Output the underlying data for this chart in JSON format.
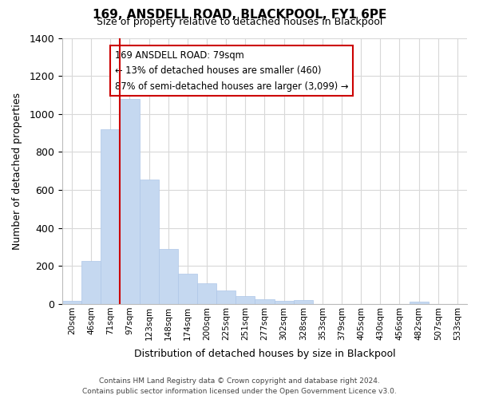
{
  "title": "169, ANSDELL ROAD, BLACKPOOL, FY1 6PE",
  "subtitle": "Size of property relative to detached houses in Blackpool",
  "xlabel": "Distribution of detached houses by size in Blackpool",
  "ylabel": "Number of detached properties",
  "bar_labels": [
    "20sqm",
    "46sqm",
    "71sqm",
    "97sqm",
    "123sqm",
    "148sqm",
    "174sqm",
    "200sqm",
    "225sqm",
    "251sqm",
    "277sqm",
    "302sqm",
    "328sqm",
    "353sqm",
    "379sqm",
    "405sqm",
    "430sqm",
    "456sqm",
    "482sqm",
    "507sqm",
    "533sqm"
  ],
  "bar_values": [
    15,
    228,
    920,
    1080,
    655,
    290,
    158,
    107,
    72,
    40,
    25,
    18,
    20,
    0,
    0,
    0,
    0,
    0,
    12,
    0,
    0
  ],
  "bar_color": "#c5d8f0",
  "bar_edge_color": "#aec6e8",
  "vline_x_offset": 2.5,
  "vline_color": "#cc0000",
  "annotation_title": "169 ANSDELL ROAD: 79sqm",
  "annotation_line1": "← 13% of detached houses are smaller (460)",
  "annotation_line2": "87% of semi-detached houses are larger (3,099) →",
  "annotation_box_color": "#ffffff",
  "annotation_box_edge": "#cc0000",
  "ylim": [
    0,
    1400
  ],
  "yticks": [
    0,
    200,
    400,
    600,
    800,
    1000,
    1200,
    1400
  ],
  "footnote": "Contains HM Land Registry data © Crown copyright and database right 2024.\nContains public sector information licensed under the Open Government Licence v3.0.",
  "bg_color": "#ffffff",
  "grid_color": "#d8d8d8"
}
